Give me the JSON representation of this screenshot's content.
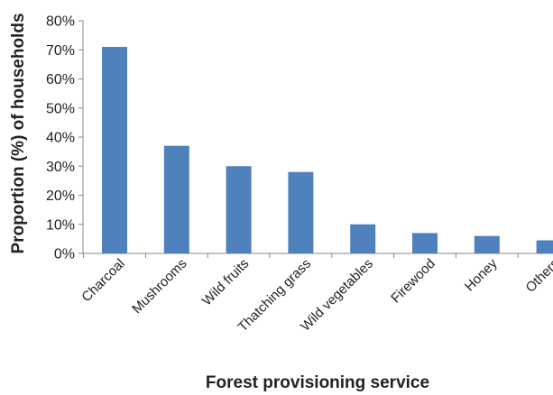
{
  "chart_data": {
    "type": "bar",
    "categories": [
      "Charcoal",
      "Mushrooms",
      "Wild fruits",
      "Thatching grass",
      "Wild vegetables",
      "Firewood",
      "Honey",
      "Others"
    ],
    "values": [
      71,
      37,
      30,
      28,
      10,
      7,
      6,
      4.5
    ],
    "xlabel": "Forest provisioning service",
    "ylabel": "Proportion (%) of households",
    "ylim": [
      0,
      80
    ],
    "yticks": [
      "0%",
      "10%",
      "20%",
      "30%",
      "40%",
      "50%",
      "60%",
      "70%",
      "80%"
    ],
    "grid": false,
    "legend": "none",
    "bar_color": "#4f81bd"
  }
}
